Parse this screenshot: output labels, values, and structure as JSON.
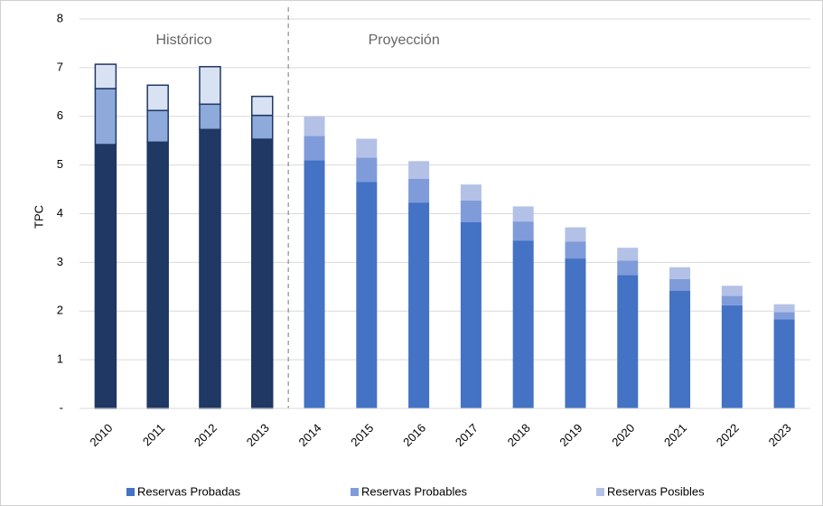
{
  "chart_data": {
    "type": "stacked-bar",
    "y_label": "TPC",
    "annotations": [
      "Histórico",
      "Proyección"
    ],
    "categories": [
      "2010",
      "2011",
      "2012",
      "2013",
      "2014",
      "2015",
      "2016",
      "2017",
      "2018",
      "2019",
      "2020",
      "2021",
      "2022",
      "2023"
    ],
    "series": [
      {
        "name": "Reservas Probadas",
        "color": "#4472c4",
        "colors": [
          "#1f3864",
          "#1f3864",
          "#1f3864",
          "#1f3864",
          "#4472c4",
          "#4472c4",
          "#4472c4",
          "#4472c4",
          "#4472c4",
          "#4472c4",
          "#4472c4",
          "#4472c4",
          "#4472c4",
          "#4472c4"
        ],
        "values": [
          5.42,
          5.47,
          5.73,
          5.53,
          5.1,
          4.65,
          4.23,
          3.83,
          3.45,
          3.08,
          2.74,
          2.42,
          2.12,
          1.83
        ]
      },
      {
        "name": "Reservas Probables",
        "color": "#7f9bd9",
        "colors": [
          "#8eaadb",
          "#8eaadb",
          "#8eaadb",
          "#8eaadb",
          "#7f9bd9",
          "#7f9bd9",
          "#7f9bd9",
          "#7f9bd9",
          "#7f9bd9",
          "#7f9bd9",
          "#7f9bd9",
          "#7f9bd9",
          "#7f9bd9",
          "#7f9bd9"
        ],
        "values": [
          1.15,
          0.65,
          0.52,
          0.49,
          0.5,
          0.5,
          0.49,
          0.44,
          0.39,
          0.35,
          0.3,
          0.24,
          0.19,
          0.15
        ]
      },
      {
        "name": "Reservas Posibles",
        "color": "#b4c1e6",
        "colors": [
          "#d9e2f3",
          "#d9e2f3",
          "#d9e2f3",
          "#d9e2f3",
          "#b4c1e6",
          "#b4c1e6",
          "#b4c1e6",
          "#b4c1e6",
          "#b4c1e6",
          "#b4c1e6",
          "#b4c1e6",
          "#b4c1e6",
          "#b4c1e6",
          "#b4c1e6"
        ],
        "values": [
          0.5,
          0.52,
          0.77,
          0.39,
          0.4,
          0.39,
          0.36,
          0.33,
          0.31,
          0.29,
          0.26,
          0.24,
          0.21,
          0.16
        ]
      }
    ],
    "ylim": [
      0,
      8
    ],
    "yticks": [
      {
        "value": 0,
        "label": "-"
      },
      1,
      2,
      3,
      4,
      5,
      6,
      7,
      8
    ],
    "grid": true,
    "legend": "bottom"
  }
}
